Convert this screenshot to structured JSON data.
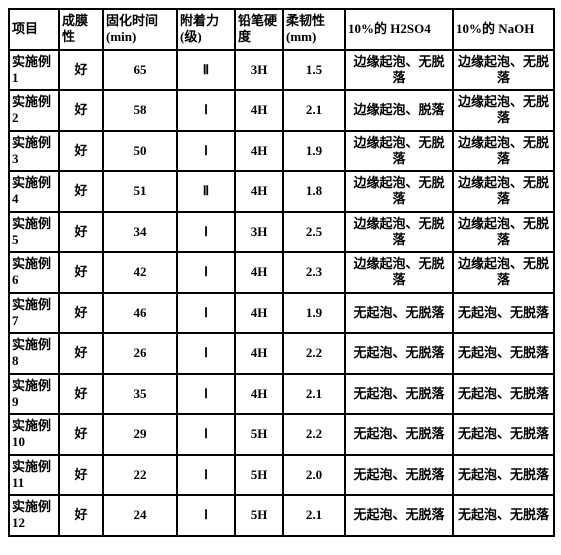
{
  "table": {
    "headers": [
      "项目",
      "成膜性",
      "固化时间 (min)",
      "附着力(级)",
      "铅笔硬度",
      "柔韧性 (mm)",
      "10%的 H2SO4",
      "10%的 NaOH"
    ],
    "rows": [
      [
        "实施例 1",
        "好",
        "65",
        "Ⅱ",
        "3H",
        "1.5",
        "边缘起泡、无脱落",
        "边缘起泡、无脱落"
      ],
      [
        "实施例 2",
        "好",
        "58",
        "Ⅰ",
        "4H",
        "2.1",
        "边缘起泡、脱落",
        "边缘起泡、无脱落"
      ],
      [
        "实施例 3",
        "好",
        "50",
        "Ⅰ",
        "4H",
        "1.9",
        "边缘起泡、无脱落",
        "边缘起泡、无脱落"
      ],
      [
        "实施例 4",
        "好",
        "51",
        "Ⅱ",
        "4H",
        "1.8",
        "边缘起泡、无脱落",
        "边缘起泡、无脱落"
      ],
      [
        "实施例 5",
        "好",
        "34",
        "Ⅰ",
        "3H",
        "2.5",
        "边缘起泡、无脱落",
        "边缘起泡、无脱落"
      ],
      [
        "实施例 6",
        "好",
        "42",
        "Ⅰ",
        "4H",
        "2.3",
        "边缘起泡、无脱落",
        "边缘起泡、无脱落"
      ],
      [
        "实施例 7",
        "好",
        "46",
        "Ⅰ",
        "4H",
        "1.9",
        "无起泡、无脱落",
        "无起泡、无脱落"
      ],
      [
        "实施例 8",
        "好",
        "26",
        "Ⅰ",
        "4H",
        "2.2",
        "无起泡、无脱落",
        "无起泡、无脱落"
      ],
      [
        "实施例 9",
        "好",
        "35",
        "Ⅰ",
        "4H",
        "2.1",
        "无起泡、无脱落",
        "无起泡、无脱落"
      ],
      [
        "实施例 10",
        "好",
        "29",
        "Ⅰ",
        "5H",
        "2.2",
        "无起泡、无脱落",
        "无起泡、无脱落"
      ],
      [
        "实施例 11",
        "好",
        "22",
        "Ⅰ",
        "5H",
        "2.0",
        "无起泡、无脱落",
        "无起泡、无脱落"
      ],
      [
        "实施例 12",
        "好",
        "24",
        "Ⅰ",
        "5H",
        "2.1",
        "无起泡、无脱落",
        "无起泡、无脱落"
      ]
    ],
    "align": [
      "left",
      "center",
      "center",
      "center",
      "center",
      "center",
      "center",
      "center"
    ]
  }
}
